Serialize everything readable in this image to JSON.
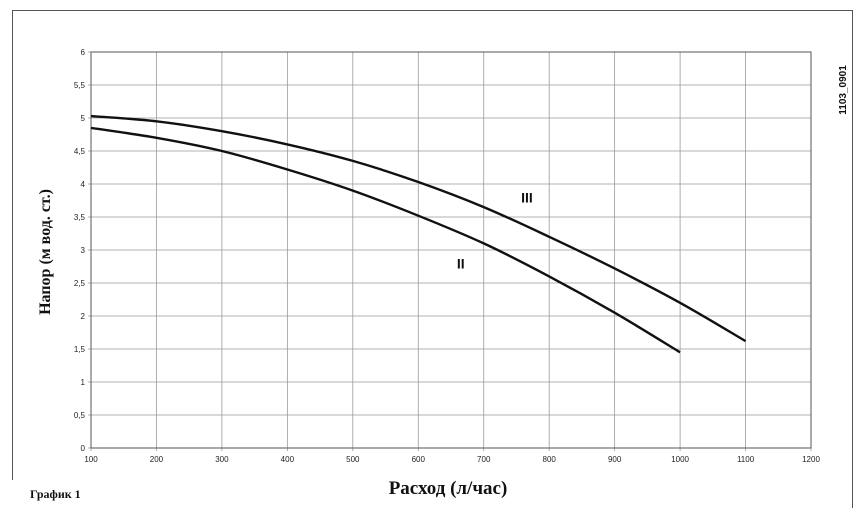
{
  "figure_label": "График 1",
  "code": "1103_0901",
  "chart_data": {
    "type": "line",
    "xlabel": "Расход (л/час)",
    "ylabel": "Напор (м вод. ст.)",
    "xlim": [
      100,
      1200
    ],
    "ylim": [
      0,
      6
    ],
    "grid": true,
    "x_ticks": [
      "100",
      "200",
      "300",
      "400",
      "500",
      "600",
      "700",
      "800",
      "900",
      "1000",
      "1100",
      "1200"
    ],
    "y_ticks": [
      "0",
      "0,5",
      "1",
      "1,5",
      "2",
      "2,5",
      "3",
      "3,5",
      "4",
      "4,5",
      "5",
      "5,5",
      "6"
    ],
    "series": [
      {
        "name": "II",
        "x": [
          100,
          200,
          300,
          400,
          500,
          600,
          700,
          800,
          900,
          1000
        ],
        "y": [
          4.85,
          4.7,
          4.5,
          4.22,
          3.9,
          3.52,
          3.1,
          2.6,
          2.05,
          1.45
        ]
      },
      {
        "name": "III",
        "x": [
          100,
          200,
          300,
          400,
          500,
          600,
          700,
          800,
          900,
          1000,
          1100
        ],
        "y": [
          5.03,
          4.95,
          4.8,
          4.6,
          4.35,
          4.03,
          3.65,
          3.2,
          2.72,
          2.2,
          1.62
        ]
      }
    ]
  }
}
